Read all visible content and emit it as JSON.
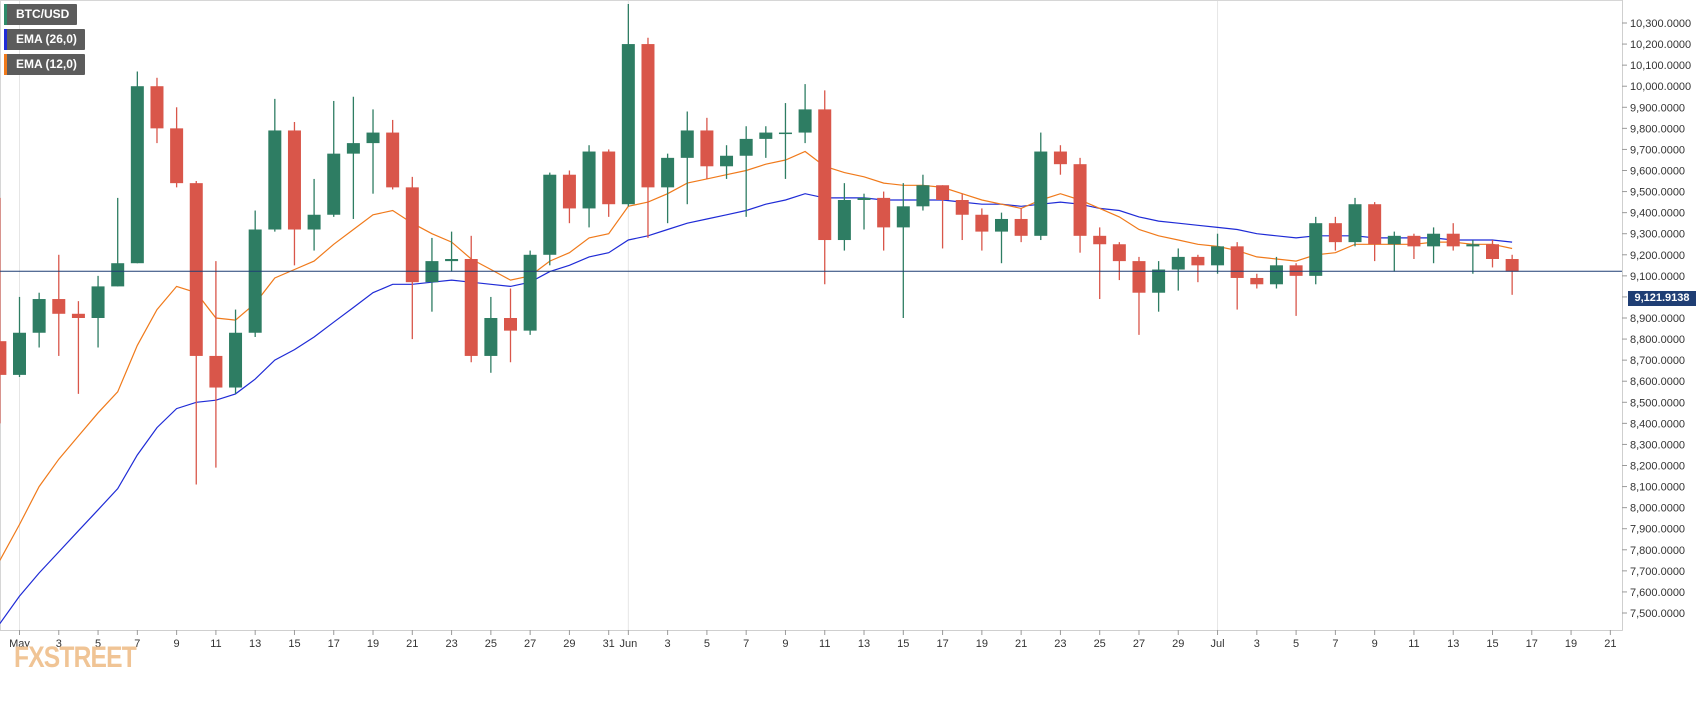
{
  "chart_data": {
    "type": "candlestick",
    "symbol": "BTC/USD",
    "legend": [
      {
        "label": "BTC/USD",
        "color": "#2e8b6a"
      },
      {
        "label": "EMA (26,0)",
        "color": "#1f2bd6"
      },
      {
        "label": "EMA (12,0)",
        "color": "#f07a1b"
      }
    ],
    "colors": {
      "up": "#2e7d63",
      "down": "#d9564a",
      "ema26": "#1f2bd6",
      "ema12": "#f07a1b",
      "price_line": "#1f3e74"
    },
    "last_price": "9,121.9138",
    "last_price_value": 9121.9138,
    "ylim": [
      7400,
      10400
    ],
    "yticks": [
      7500,
      7600,
      7700,
      7800,
      7900,
      8000,
      8100,
      8200,
      8300,
      8400,
      8500,
      8600,
      8700,
      8800,
      8900,
      9000,
      9100,
      9200,
      9300,
      9400,
      9500,
      9600,
      9700,
      9800,
      9900,
      10000,
      10100,
      10200,
      10300
    ],
    "ytick_labels": [
      "7,500.0000",
      "7,600.0000",
      "7,700.0000",
      "7,800.0000",
      "7,900.0000",
      "8,000.0000",
      "8,100.0000",
      "8,200.0000",
      "8,300.0000",
      "8,400.0000",
      "8,500.0000",
      "8,600.0000",
      "8,700.0000",
      "8,800.0000",
      "8,900.0000",
      "9,000.0000",
      "9,100.0000",
      "9,200.0000",
      "9,300.0000",
      "9,400.0000",
      "9,500.0000",
      "9,600.0000",
      "9,700.0000",
      "9,800.0000",
      "9,900.0000",
      "10,000.0000",
      "10,100.0000",
      "10,200.0000",
      "10,300.0000"
    ],
    "xrange": [
      -1,
      80
    ],
    "xticks": [
      {
        "i": 0,
        "label": "May"
      },
      {
        "i": 2,
        "label": "3"
      },
      {
        "i": 4,
        "label": "5"
      },
      {
        "i": 6,
        "label": "7"
      },
      {
        "i": 8,
        "label": "9"
      },
      {
        "i": 10,
        "label": "11"
      },
      {
        "i": 12,
        "label": "13"
      },
      {
        "i": 14,
        "label": "15"
      },
      {
        "i": 16,
        "label": "17"
      },
      {
        "i": 18,
        "label": "19"
      },
      {
        "i": 20,
        "label": "21"
      },
      {
        "i": 22,
        "label": "23"
      },
      {
        "i": 24,
        "label": "25"
      },
      {
        "i": 26,
        "label": "27"
      },
      {
        "i": 28,
        "label": "29"
      },
      {
        "i": 30,
        "label": "31"
      },
      {
        "i": 31,
        "label": "Jun"
      },
      {
        "i": 33,
        "label": "3"
      },
      {
        "i": 35,
        "label": "5"
      },
      {
        "i": 37,
        "label": "7"
      },
      {
        "i": 39,
        "label": "9"
      },
      {
        "i": 41,
        "label": "11"
      },
      {
        "i": 43,
        "label": "13"
      },
      {
        "i": 45,
        "label": "15"
      },
      {
        "i": 47,
        "label": "17"
      },
      {
        "i": 49,
        "label": "19"
      },
      {
        "i": 51,
        "label": "21"
      },
      {
        "i": 53,
        "label": "23"
      },
      {
        "i": 55,
        "label": "25"
      },
      {
        "i": 57,
        "label": "27"
      },
      {
        "i": 59,
        "label": "29"
      },
      {
        "i": 61,
        "label": "Jul"
      },
      {
        "i": 63,
        "label": "3"
      },
      {
        "i": 65,
        "label": "5"
      },
      {
        "i": 67,
        "label": "7"
      },
      {
        "i": 69,
        "label": "9"
      },
      {
        "i": 71,
        "label": "11"
      },
      {
        "i": 73,
        "label": "13"
      },
      {
        "i": 75,
        "label": "15"
      },
      {
        "i": 77,
        "label": "17"
      },
      {
        "i": 79,
        "label": "19"
      },
      {
        "i": 81,
        "label": "21"
      }
    ],
    "gridlines_x": [
      0,
      31,
      61
    ],
    "candles": [
      {
        "i": -1,
        "o": 8790,
        "h": 9470,
        "l": 8400,
        "c": 8630
      },
      {
        "i": 0,
        "o": 8630,
        "h": 9000,
        "l": 8620,
        "c": 8830
      },
      {
        "i": 1,
        "o": 8830,
        "h": 9020,
        "l": 8760,
        "c": 8990
      },
      {
        "i": 2,
        "o": 8990,
        "h": 9200,
        "l": 8720,
        "c": 8920
      },
      {
        "i": 3,
        "o": 8920,
        "h": 8980,
        "l": 8540,
        "c": 8900
      },
      {
        "i": 4,
        "o": 8900,
        "h": 9100,
        "l": 8760,
        "c": 9050
      },
      {
        "i": 5,
        "o": 9050,
        "h": 9470,
        "l": 9050,
        "c": 9160
      },
      {
        "i": 6,
        "o": 9160,
        "h": 10070,
        "l": 9160,
        "c": 10000
      },
      {
        "i": 7,
        "o": 10000,
        "h": 10040,
        "l": 9730,
        "c": 9800
      },
      {
        "i": 8,
        "o": 9800,
        "h": 9900,
        "l": 9520,
        "c": 9540
      },
      {
        "i": 9,
        "o": 9540,
        "h": 9550,
        "l": 8110,
        "c": 8720
      },
      {
        "i": 10,
        "o": 8720,
        "h": 9170,
        "l": 8190,
        "c": 8570
      },
      {
        "i": 11,
        "o": 8570,
        "h": 8940,
        "l": 8540,
        "c": 8830
      },
      {
        "i": 12,
        "o": 8830,
        "h": 9410,
        "l": 8810,
        "c": 9320
      },
      {
        "i": 13,
        "o": 9320,
        "h": 9940,
        "l": 9310,
        "c": 9790
      },
      {
        "i": 14,
        "o": 9790,
        "h": 9830,
        "l": 9150,
        "c": 9320
      },
      {
        "i": 15,
        "o": 9320,
        "h": 9560,
        "l": 9220,
        "c": 9390
      },
      {
        "i": 16,
        "o": 9390,
        "h": 9930,
        "l": 9380,
        "c": 9680
      },
      {
        "i": 17,
        "o": 9680,
        "h": 9950,
        "l": 9370,
        "c": 9730
      },
      {
        "i": 18,
        "o": 9730,
        "h": 9890,
        "l": 9490,
        "c": 9780
      },
      {
        "i": 19,
        "o": 9780,
        "h": 9840,
        "l": 9510,
        "c": 9520
      },
      {
        "i": 20,
        "o": 9520,
        "h": 9570,
        "l": 8800,
        "c": 9070
      },
      {
        "i": 21,
        "o": 9070,
        "h": 9280,
        "l": 8930,
        "c": 9170
      },
      {
        "i": 22,
        "o": 9170,
        "h": 9310,
        "l": 9120,
        "c": 9180
      },
      {
        "i": 23,
        "o": 9180,
        "h": 9290,
        "l": 8690,
        "c": 8720
      },
      {
        "i": 24,
        "o": 8720,
        "h": 9000,
        "l": 8640,
        "c": 8900
      },
      {
        "i": 25,
        "o": 8900,
        "h": 9040,
        "l": 8690,
        "c": 8840
      },
      {
        "i": 26,
        "o": 8840,
        "h": 9220,
        "l": 8820,
        "c": 9200
      },
      {
        "i": 27,
        "o": 9200,
        "h": 9590,
        "l": 9150,
        "c": 9580
      },
      {
        "i": 28,
        "o": 9580,
        "h": 9600,
        "l": 9350,
        "c": 9420
      },
      {
        "i": 29,
        "o": 9420,
        "h": 9720,
        "l": 9330,
        "c": 9690
      },
      {
        "i": 30,
        "o": 9690,
        "h": 9700,
        "l": 9380,
        "c": 9440
      },
      {
        "i": 31,
        "o": 9440,
        "h": 10390,
        "l": 9430,
        "c": 10200
      },
      {
        "i": 32,
        "o": 10200,
        "h": 10230,
        "l": 9280,
        "c": 9520
      },
      {
        "i": 33,
        "o": 9520,
        "h": 9680,
        "l": 9350,
        "c": 9660
      },
      {
        "i": 34,
        "o": 9660,
        "h": 9880,
        "l": 9440,
        "c": 9790
      },
      {
        "i": 35,
        "o": 9790,
        "h": 9850,
        "l": 9560,
        "c": 9620
      },
      {
        "i": 36,
        "o": 9620,
        "h": 9720,
        "l": 9560,
        "c": 9670
      },
      {
        "i": 37,
        "o": 9670,
        "h": 9810,
        "l": 9380,
        "c": 9750
      },
      {
        "i": 38,
        "o": 9750,
        "h": 9810,
        "l": 9660,
        "c": 9780
      },
      {
        "i": 39,
        "o": 9780,
        "h": 9920,
        "l": 9560,
        "c": 9780
      },
      {
        "i": 40,
        "o": 9780,
        "h": 10010,
        "l": 9730,
        "c": 9890
      },
      {
        "i": 41,
        "o": 9890,
        "h": 9980,
        "l": 9060,
        "c": 9270
      },
      {
        "i": 42,
        "o": 9270,
        "h": 9540,
        "l": 9220,
        "c": 9460
      },
      {
        "i": 43,
        "o": 9460,
        "h": 9490,
        "l": 9320,
        "c": 9470
      },
      {
        "i": 44,
        "o": 9470,
        "h": 9500,
        "l": 9220,
        "c": 9330
      },
      {
        "i": 45,
        "o": 9330,
        "h": 9540,
        "l": 8900,
        "c": 9430
      },
      {
        "i": 46,
        "o": 9430,
        "h": 9580,
        "l": 9410,
        "c": 9530
      },
      {
        "i": 47,
        "o": 9530,
        "h": 9530,
        "l": 9230,
        "c": 9460
      },
      {
        "i": 48,
        "o": 9460,
        "h": 9490,
        "l": 9270,
        "c": 9390
      },
      {
        "i": 49,
        "o": 9390,
        "h": 9420,
        "l": 9220,
        "c": 9310
      },
      {
        "i": 50,
        "o": 9310,
        "h": 9400,
        "l": 9160,
        "c": 9370
      },
      {
        "i": 51,
        "o": 9370,
        "h": 9420,
        "l": 9260,
        "c": 9290
      },
      {
        "i": 52,
        "o": 9290,
        "h": 9780,
        "l": 9270,
        "c": 9690
      },
      {
        "i": 53,
        "o": 9690,
        "h": 9720,
        "l": 9580,
        "c": 9630
      },
      {
        "i": 54,
        "o": 9630,
        "h": 9660,
        "l": 9210,
        "c": 9290
      },
      {
        "i": 55,
        "o": 9290,
        "h": 9330,
        "l": 8990,
        "c": 9250
      },
      {
        "i": 56,
        "o": 9250,
        "h": 9260,
        "l": 9080,
        "c": 9170
      },
      {
        "i": 57,
        "o": 9170,
        "h": 9190,
        "l": 8820,
        "c": 9020
      },
      {
        "i": 58,
        "o": 9020,
        "h": 9170,
        "l": 8930,
        "c": 9130
      },
      {
        "i": 59,
        "o": 9130,
        "h": 9230,
        "l": 9030,
        "c": 9190
      },
      {
        "i": 60,
        "o": 9190,
        "h": 9200,
        "l": 9070,
        "c": 9150
      },
      {
        "i": 61,
        "o": 9150,
        "h": 9300,
        "l": 9110,
        "c": 9240
      },
      {
        "i": 62,
        "o": 9240,
        "h": 9260,
        "l": 8940,
        "c": 9090
      },
      {
        "i": 63,
        "o": 9090,
        "h": 9110,
        "l": 9040,
        "c": 9060
      },
      {
        "i": 64,
        "o": 9060,
        "h": 9190,
        "l": 9040,
        "c": 9150
      },
      {
        "i": 65,
        "o": 9150,
        "h": 9160,
        "l": 8910,
        "c": 9100
      },
      {
        "i": 66,
        "o": 9100,
        "h": 9380,
        "l": 9060,
        "c": 9350
      },
      {
        "i": 67,
        "o": 9350,
        "h": 9380,
        "l": 9220,
        "c": 9260
      },
      {
        "i": 68,
        "o": 9260,
        "h": 9470,
        "l": 9240,
        "c": 9440
      },
      {
        "i": 69,
        "o": 9440,
        "h": 9450,
        "l": 9170,
        "c": 9250
      },
      {
        "i": 70,
        "o": 9250,
        "h": 9310,
        "l": 9120,
        "c": 9290
      },
      {
        "i": 71,
        "o": 9290,
        "h": 9300,
        "l": 9180,
        "c": 9240
      },
      {
        "i": 72,
        "o": 9240,
        "h": 9330,
        "l": 9160,
        "c": 9300
      },
      {
        "i": 73,
        "o": 9300,
        "h": 9350,
        "l": 9220,
        "c": 9240
      },
      {
        "i": 74,
        "o": 9240,
        "h": 9270,
        "l": 9110,
        "c": 9250
      },
      {
        "i": 75,
        "o": 9250,
        "h": 9270,
        "l": 9140,
        "c": 9180
      },
      {
        "i": 76,
        "o": 9180,
        "h": 9200,
        "l": 9010,
        "c": 9120
      }
    ],
    "ema12": [
      [
        -1,
        7750
      ],
      [
        0,
        7920
      ],
      [
        1,
        8100
      ],
      [
        2,
        8230
      ],
      [
        3,
        8340
      ],
      [
        4,
        8450
      ],
      [
        5,
        8550
      ],
      [
        6,
        8770
      ],
      [
        7,
        8940
      ],
      [
        8,
        9050
      ],
      [
        9,
        9020
      ],
      [
        10,
        8900
      ],
      [
        11,
        8890
      ],
      [
        12,
        8970
      ],
      [
        13,
        9090
      ],
      [
        14,
        9130
      ],
      [
        15,
        9170
      ],
      [
        16,
        9250
      ],
      [
        17,
        9320
      ],
      [
        18,
        9390
      ],
      [
        19,
        9410
      ],
      [
        20,
        9350
      ],
      [
        21,
        9300
      ],
      [
        22,
        9260
      ],
      [
        23,
        9180
      ],
      [
        24,
        9130
      ],
      [
        25,
        9080
      ],
      [
        26,
        9100
      ],
      [
        27,
        9170
      ],
      [
        28,
        9210
      ],
      [
        29,
        9280
      ],
      [
        30,
        9300
      ],
      [
        31,
        9430
      ],
      [
        32,
        9450
      ],
      [
        33,
        9490
      ],
      [
        34,
        9540
      ],
      [
        35,
        9560
      ],
      [
        36,
        9580
      ],
      [
        37,
        9600
      ],
      [
        38,
        9630
      ],
      [
        39,
        9650
      ],
      [
        40,
        9690
      ],
      [
        41,
        9620
      ],
      [
        42,
        9590
      ],
      [
        43,
        9570
      ],
      [
        44,
        9540
      ],
      [
        45,
        9530
      ],
      [
        46,
        9530
      ],
      [
        47,
        9520
      ],
      [
        48,
        9490
      ],
      [
        49,
        9460
      ],
      [
        50,
        9440
      ],
      [
        51,
        9420
      ],
      [
        52,
        9460
      ],
      [
        53,
        9490
      ],
      [
        54,
        9460
      ],
      [
        55,
        9420
      ],
      [
        56,
        9380
      ],
      [
        57,
        9320
      ],
      [
        58,
        9290
      ],
      [
        59,
        9270
      ],
      [
        60,
        9250
      ],
      [
        61,
        9240
      ],
      [
        62,
        9220
      ],
      [
        63,
        9190
      ],
      [
        64,
        9180
      ],
      [
        65,
        9170
      ],
      [
        66,
        9200
      ],
      [
        67,
        9210
      ],
      [
        68,
        9250
      ],
      [
        69,
        9250
      ],
      [
        70,
        9250
      ],
      [
        71,
        9250
      ],
      [
        72,
        9260
      ],
      [
        73,
        9260
      ],
      [
        74,
        9250
      ],
      [
        75,
        9250
      ],
      [
        76,
        9230
      ]
    ],
    "ema26": [
      [
        -1,
        7450
      ],
      [
        0,
        7580
      ],
      [
        1,
        7690
      ],
      [
        2,
        7790
      ],
      [
        3,
        7890
      ],
      [
        4,
        7990
      ],
      [
        5,
        8090
      ],
      [
        6,
        8250
      ],
      [
        7,
        8380
      ],
      [
        8,
        8470
      ],
      [
        9,
        8500
      ],
      [
        10,
        8510
      ],
      [
        11,
        8540
      ],
      [
        12,
        8610
      ],
      [
        13,
        8700
      ],
      [
        14,
        8750
      ],
      [
        15,
        8810
      ],
      [
        16,
        8880
      ],
      [
        17,
        8950
      ],
      [
        18,
        9020
      ],
      [
        19,
        9060
      ],
      [
        20,
        9060
      ],
      [
        21,
        9070
      ],
      [
        22,
        9080
      ],
      [
        23,
        9070
      ],
      [
        24,
        9060
      ],
      [
        25,
        9050
      ],
      [
        26,
        9070
      ],
      [
        27,
        9120
      ],
      [
        28,
        9150
      ],
      [
        29,
        9190
      ],
      [
        30,
        9210
      ],
      [
        31,
        9270
      ],
      [
        32,
        9290
      ],
      [
        33,
        9320
      ],
      [
        34,
        9350
      ],
      [
        35,
        9370
      ],
      [
        36,
        9390
      ],
      [
        37,
        9410
      ],
      [
        38,
        9440
      ],
      [
        39,
        9460
      ],
      [
        40,
        9490
      ],
      [
        41,
        9470
      ],
      [
        42,
        9470
      ],
      [
        43,
        9470
      ],
      [
        44,
        9460
      ],
      [
        45,
        9460
      ],
      [
        46,
        9460
      ],
      [
        47,
        9460
      ],
      [
        48,
        9450
      ],
      [
        49,
        9440
      ],
      [
        50,
        9440
      ],
      [
        51,
        9430
      ],
      [
        52,
        9440
      ],
      [
        53,
        9450
      ],
      [
        54,
        9440
      ],
      [
        55,
        9420
      ],
      [
        56,
        9410
      ],
      [
        57,
        9380
      ],
      [
        58,
        9360
      ],
      [
        59,
        9350
      ],
      [
        60,
        9340
      ],
      [
        61,
        9330
      ],
      [
        62,
        9320
      ],
      [
        63,
        9300
      ],
      [
        64,
        9290
      ],
      [
        65,
        9280
      ],
      [
        66,
        9290
      ],
      [
        67,
        9290
      ],
      [
        68,
        9290
      ],
      [
        69,
        9280
      ],
      [
        70,
        9280
      ],
      [
        71,
        9280
      ],
      [
        72,
        9280
      ],
      [
        73,
        9270
      ],
      [
        74,
        9270
      ],
      [
        75,
        9270
      ],
      [
        76,
        9260
      ]
    ]
  },
  "logo_text": "FXSTREET"
}
